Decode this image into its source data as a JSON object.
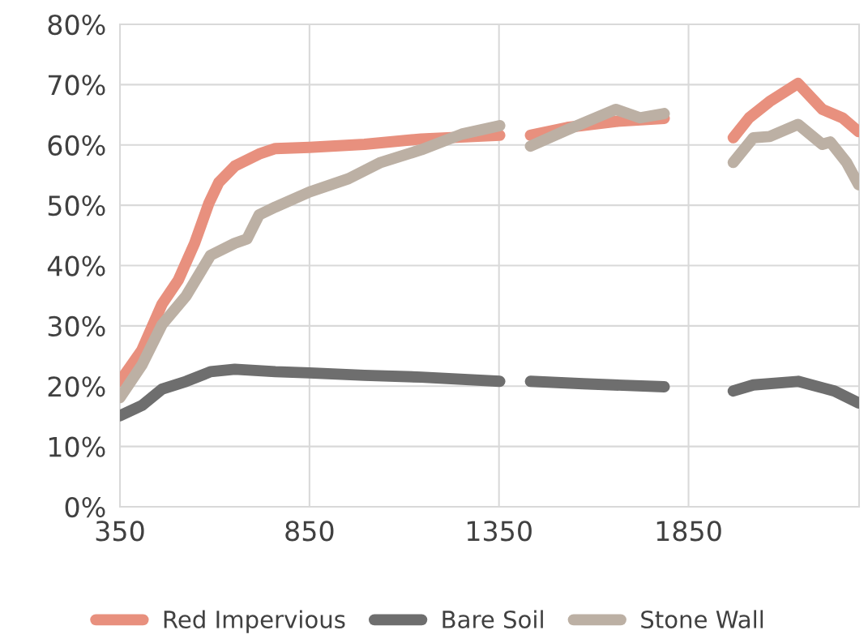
{
  "chart_data": {
    "type": "line",
    "xlim": [
      350,
      2300
    ],
    "xticks": [
      350,
      850,
      1350,
      1850
    ],
    "ylim": [
      0,
      80
    ],
    "yticks": [
      {
        "value": 0,
        "label": "0%"
      },
      {
        "value": 10,
        "label": "10%"
      },
      {
        "value": 20,
        "label": "20%"
      },
      {
        "value": 30,
        "label": "30%"
      },
      {
        "value": 40,
        "label": "40%"
      },
      {
        "value": 50,
        "label": "50%"
      },
      {
        "value": 60,
        "label": "60%"
      },
      {
        "value": 70,
        "label": "70%"
      },
      {
        "value": 80,
        "label": "80%"
      }
    ],
    "grid": true,
    "legend": "bottom",
    "line_style": "solid",
    "series": [
      {
        "name": "Red Impervious",
        "color": "#e8907e",
        "x": [
          350,
          408,
          461,
          504,
          547,
          585,
          611,
          653,
          717,
          760,
          850,
          995,
          1145,
          1352,
          1390,
          1433,
          1530,
          1658,
          1786,
          1880,
          1968,
          2010,
          2064,
          2139,
          2203,
          2256,
          2299
        ],
        "values": [
          20.8,
          26,
          33.6,
          37.6,
          43.7,
          50.4,
          53.8,
          56.5,
          58.5,
          59.4,
          59.6,
          60.1,
          61,
          61.6,
          null,
          61.6,
          62.9,
          63.9,
          64.4,
          null,
          61.2,
          64.5,
          67.2,
          70.2,
          65.9,
          64.5,
          62.2
        ]
      },
      {
        "name": "Bare Soil",
        "color": "#6e6e6e",
        "x": [
          350,
          408,
          461,
          525,
          589,
          653,
          760,
          850,
          995,
          1145,
          1352,
          1390,
          1433,
          1572,
          1786,
          1880,
          1968,
          2021,
          2139,
          2235,
          2299
        ],
        "values": [
          15.1,
          16.8,
          19.5,
          20.8,
          22.4,
          22.8,
          22.4,
          22.2,
          21.8,
          21.5,
          20.8,
          null,
          20.8,
          20.4,
          19.9,
          null,
          19.2,
          20.2,
          20.8,
          19.2,
          17.2
        ]
      },
      {
        "name": "Stone Wall",
        "color": "#bcb0a4",
        "x": [
          350,
          408,
          461,
          525,
          589,
          653,
          685,
          717,
          760,
          850,
          953,
          1038,
          1145,
          1252,
          1352,
          1390,
          1433,
          1530,
          1658,
          1722,
          1786,
          1880,
          1968,
          2021,
          2064,
          2139,
          2203,
          2224,
          2267,
          2299
        ],
        "values": [
          18.1,
          23.5,
          30.2,
          35,
          41.7,
          43.7,
          44.4,
          48.4,
          49.7,
          52.2,
          54.4,
          57.1,
          59.2,
          61.8,
          63.2,
          null,
          59.8,
          62.5,
          65.9,
          64.5,
          65.2,
          null,
          57.1,
          61.2,
          61.4,
          63.4,
          60.1,
          60.5,
          57.1,
          53.4
        ]
      }
    ]
  }
}
